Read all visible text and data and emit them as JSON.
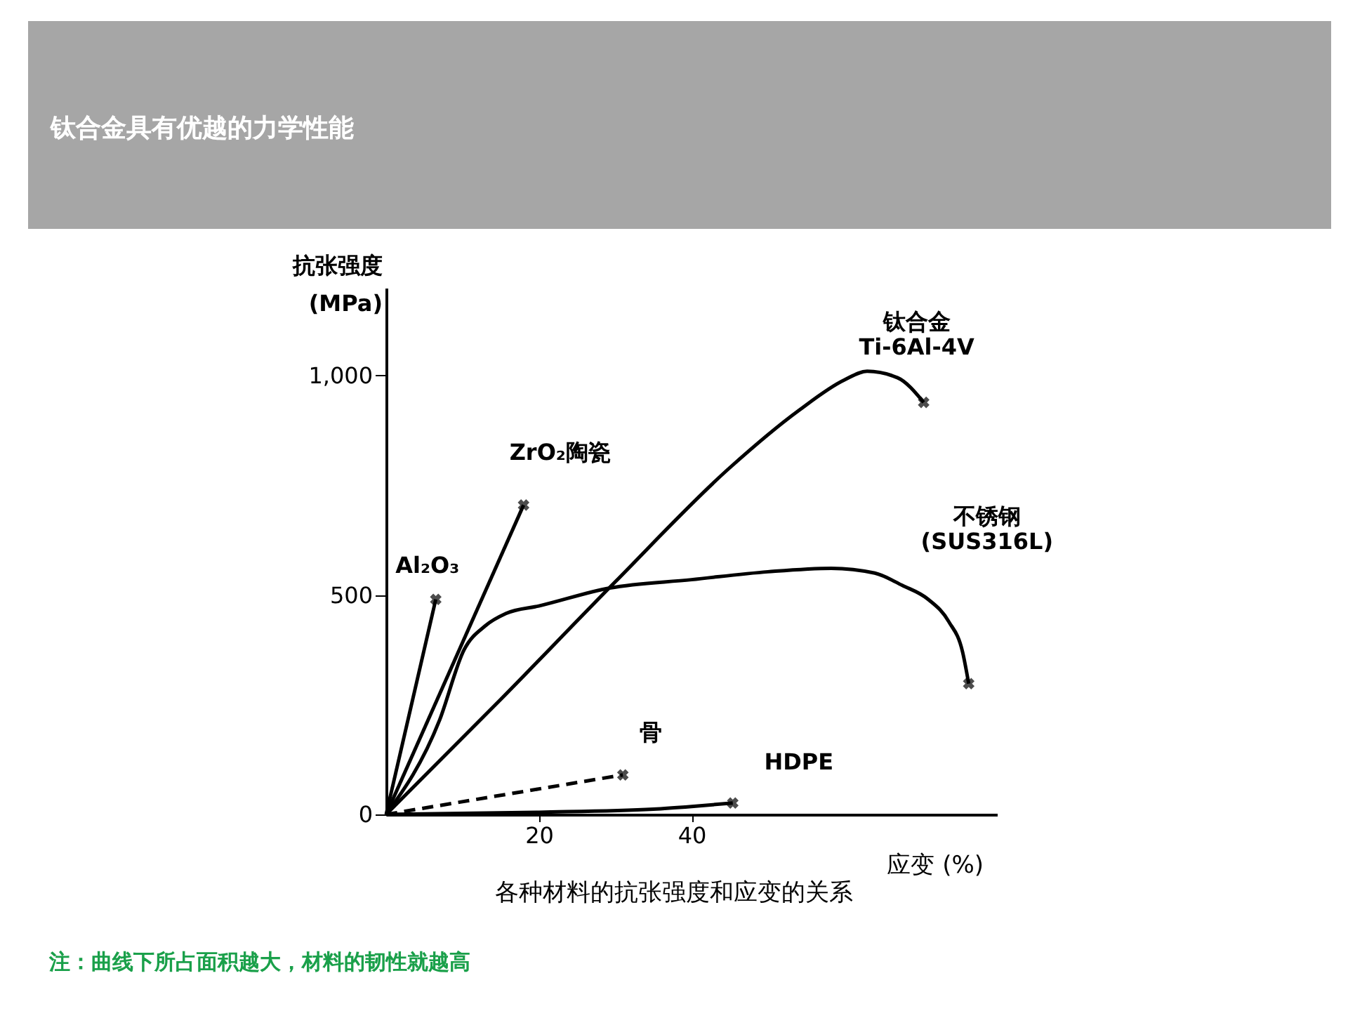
{
  "chart_data": {
    "type": "line",
    "title": "钛合金具有优越的力学性能",
    "xlabel": "应变 (%)",
    "ylabel": "抗张强度\n(MPa)",
    "xlim": [
      0,
      80
    ],
    "ylim": [
      0,
      1200
    ],
    "xticks": [
      20,
      40
    ],
    "yticks": [
      0,
      500,
      {
        "value": 1000,
        "label": "1,000"
      }
    ],
    "series": [
      {
        "name": "Al₂O₃",
        "color": "#000000",
        "x": [
          0,
          6.5
        ],
        "values": [
          0,
          490
        ]
      },
      {
        "name": "ZrO₂陶瓷",
        "color": "#000000",
        "x": [
          0,
          18
        ],
        "values": [
          0,
          705
        ]
      },
      {
        "name": "钛合金\nTi-6Al-4V",
        "color": "#000000",
        "x": [
          0,
          15,
          30,
          45,
          54,
          60,
          63,
          67,
          70.4
        ],
        "values": [
          0,
          262,
          530,
          790,
          920,
          990,
          1010,
          995,
          939
        ]
      },
      {
        "name": "不锈钢\n(SUS316L)",
        "color": "#000000",
        "x": [
          0,
          7,
          10.2,
          13,
          15.7,
          20,
          29.3,
          40,
          50,
          58.3,
          64,
          67.6,
          71,
          73.7,
          75.5,
          76.3
        ],
        "values": [
          0,
          215,
          375,
          430,
          458,
          475,
          516,
          535,
          553,
          561,
          550,
          522,
          490,
          439,
          370,
          298
        ]
      },
      {
        "name": "骨",
        "color": "#000000",
        "line_style": "dashed",
        "x": [
          0,
          31
        ],
        "values": [
          0,
          90
        ]
      },
      {
        "name": "HDPE",
        "color": "#000000",
        "x": [
          0,
          20,
          35,
          40,
          45.4
        ],
        "values": [
          0,
          5,
          12,
          18,
          26
        ]
      },
      {
        "type": "scatter",
        "marker": "cross",
        "color": "#000000",
        "x": [
          6.5,
          18,
          70.4,
          76.3,
          31,
          45.4
        ],
        "values": [
          490,
          705,
          939,
          298,
          90,
          26
        ]
      }
    ],
    "annotations": [
      "各种材料的抗张强度和应变的关系",
      "注：曲线下所占面积越大，材料的韧性就越高"
    ]
  }
}
